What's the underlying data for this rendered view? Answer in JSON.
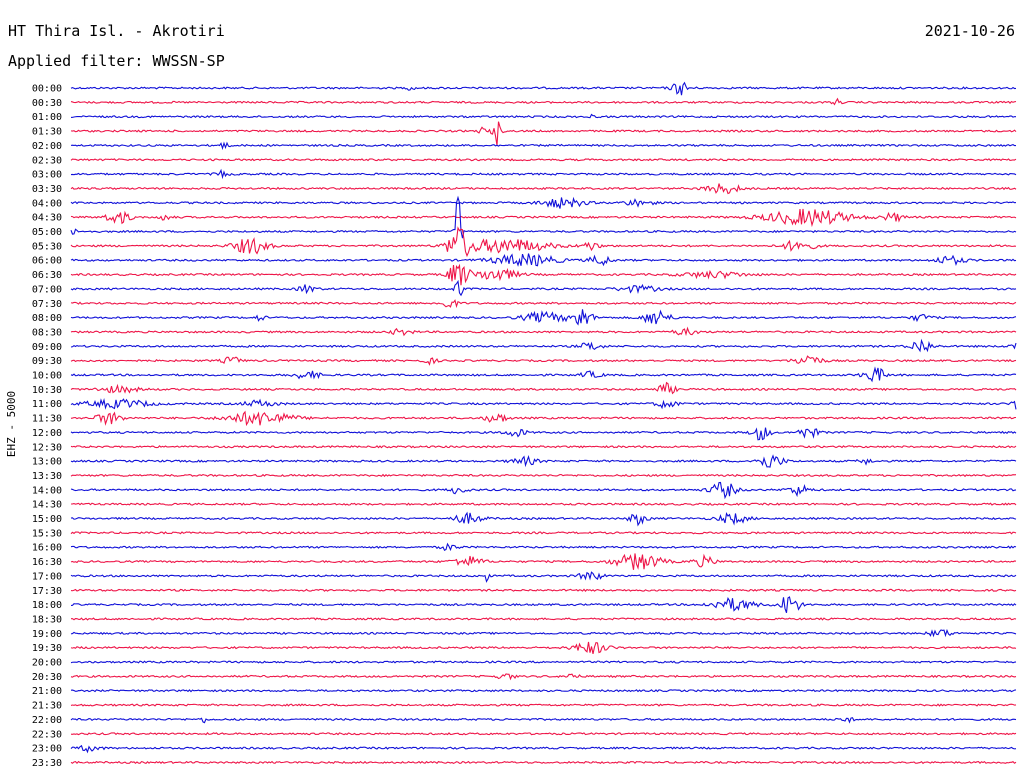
{
  "header": {
    "station": "HT Thira Isl. - Akrotiri",
    "date": "2021-10-26",
    "filter": "Applied filter: WWSSN-SP"
  },
  "chart_data": {
    "type": "line",
    "title": "HT Thira Isl. - Akrotiri",
    "ylabel": "EHZ - 5000",
    "trace_colors": [
      "#1010d8",
      "#ee1548"
    ],
    "rows": [
      {
        "label": "00:00",
        "events": [
          [
            0.36,
            3,
            3
          ],
          [
            0.645,
            7,
            8
          ]
        ]
      },
      {
        "label": "00:30",
        "events": [
          [
            0.81,
            3,
            4
          ]
        ]
      },
      {
        "label": "01:00",
        "events": [
          [
            0.55,
            2,
            3
          ]
        ]
      },
      {
        "label": "01:30",
        "events": [
          [
            0.45,
            14,
            4
          ],
          [
            0.435,
            4,
            3
          ]
        ]
      },
      {
        "label": "02:00",
        "events": [
          [
            0.16,
            3,
            6
          ]
        ]
      },
      {
        "label": "02:30",
        "events": []
      },
      {
        "label": "03:00",
        "events": [
          [
            0.16,
            3,
            6
          ]
        ]
      },
      {
        "label": "03:30",
        "events": [
          [
            0.69,
            5,
            16
          ]
        ]
      },
      {
        "label": "04:00",
        "events": [
          [
            0.52,
            5,
            20
          ],
          [
            0.6,
            3,
            14
          ]
        ]
      },
      {
        "label": "04:30",
        "events": [
          [
            0.05,
            6,
            12
          ],
          [
            0.1,
            3,
            6
          ],
          [
            0.78,
            8,
            40
          ],
          [
            0.87,
            4,
            10
          ]
        ]
      },
      {
        "label": "05:00",
        "events": [
          [
            0.0,
            4,
            5
          ],
          [
            0.41,
            45,
            3
          ]
        ]
      },
      {
        "label": "05:30",
        "events": [
          [
            0.41,
            18,
            10
          ],
          [
            0.46,
            7,
            40
          ],
          [
            0.19,
            8,
            16
          ],
          [
            0.77,
            6,
            14
          ],
          [
            0.55,
            4,
            8
          ]
        ]
      },
      {
        "label": "06:00",
        "events": [
          [
            0.48,
            6,
            30
          ],
          [
            0.56,
            5,
            10
          ],
          [
            0.93,
            4,
            14
          ]
        ]
      },
      {
        "label": "06:30",
        "events": [
          [
            0.41,
            12,
            10
          ],
          [
            0.45,
            6,
            20
          ],
          [
            0.68,
            3,
            30
          ]
        ]
      },
      {
        "label": "07:00",
        "events": [
          [
            0.41,
            16,
            3
          ],
          [
            0.25,
            4,
            8
          ],
          [
            0.6,
            3,
            20
          ]
        ]
      },
      {
        "label": "07:30",
        "events": [
          [
            0.4,
            5,
            8
          ]
        ]
      },
      {
        "label": "08:00",
        "events": [
          [
            0.54,
            10,
            10
          ],
          [
            0.62,
            8,
            12
          ],
          [
            0.5,
            5,
            20
          ],
          [
            0.2,
            3,
            5
          ],
          [
            0.9,
            3,
            10
          ]
        ]
      },
      {
        "label": "08:30",
        "events": [
          [
            0.65,
            3,
            12
          ],
          [
            0.35,
            3,
            10
          ]
        ]
      },
      {
        "label": "09:00",
        "events": [
          [
            0.9,
            7,
            10
          ],
          [
            0.55,
            4,
            10
          ],
          [
            1.0,
            4,
            6
          ]
        ]
      },
      {
        "label": "09:30",
        "events": [
          [
            0.78,
            6,
            12
          ],
          [
            0.17,
            4,
            8
          ],
          [
            0.38,
            3,
            6
          ]
        ]
      },
      {
        "label": "10:00",
        "events": [
          [
            0.85,
            8,
            10
          ],
          [
            0.25,
            4,
            12
          ],
          [
            0.55,
            3,
            10
          ]
        ]
      },
      {
        "label": "10:30",
        "events": [
          [
            0.63,
            6,
            8
          ],
          [
            0.05,
            3,
            20
          ]
        ]
      },
      {
        "label": "11:00",
        "events": [
          [
            0.63,
            4,
            10
          ],
          [
            0.05,
            4,
            30
          ],
          [
            0.2,
            3,
            16
          ],
          [
            1.0,
            5,
            4
          ]
        ]
      },
      {
        "label": "11:30",
        "events": [
          [
            0.2,
            7,
            30
          ],
          [
            0.04,
            6,
            12
          ],
          [
            0.45,
            5,
            10
          ]
        ]
      },
      {
        "label": "12:00",
        "events": [
          [
            0.73,
            8,
            8
          ],
          [
            0.78,
            5,
            10
          ],
          [
            0.47,
            4,
            10
          ]
        ]
      },
      {
        "label": "12:30",
        "events": []
      },
      {
        "label": "13:00",
        "events": [
          [
            0.74,
            7,
            12
          ],
          [
            0.48,
            4,
            12
          ],
          [
            0.84,
            3,
            6
          ]
        ]
      },
      {
        "label": "13:30",
        "events": []
      },
      {
        "label": "14:00",
        "events": [
          [
            0.69,
            8,
            12
          ],
          [
            0.77,
            5,
            10
          ],
          [
            0.41,
            4,
            8
          ]
        ]
      },
      {
        "label": "14:30",
        "events": []
      },
      {
        "label": "15:00",
        "events": [
          [
            0.6,
            6,
            8
          ],
          [
            0.7,
            5,
            14
          ],
          [
            0.42,
            5,
            14
          ]
        ]
      },
      {
        "label": "15:30",
        "events": []
      },
      {
        "label": "16:00",
        "events": [
          [
            0.4,
            3,
            8
          ]
        ]
      },
      {
        "label": "16:30",
        "events": [
          [
            0.6,
            8,
            22
          ],
          [
            0.67,
            5,
            10
          ],
          [
            0.42,
            5,
            14
          ]
        ]
      },
      {
        "label": "17:00",
        "events": [
          [
            0.55,
            5,
            10
          ],
          [
            0.44,
            7,
            2
          ]
        ]
      },
      {
        "label": "17:30",
        "events": []
      },
      {
        "label": "18:00",
        "events": [
          [
            0.76,
            10,
            10
          ],
          [
            0.7,
            6,
            20
          ]
        ]
      },
      {
        "label": "18:30",
        "events": []
      },
      {
        "label": "19:00",
        "events": [
          [
            0.92,
            4,
            10
          ]
        ]
      },
      {
        "label": "19:30",
        "events": [
          [
            0.55,
            6,
            16
          ]
        ]
      },
      {
        "label": "20:00",
        "events": []
      },
      {
        "label": "20:30",
        "events": [
          [
            0.46,
            3,
            8
          ],
          [
            0.53,
            3,
            6
          ]
        ]
      },
      {
        "label": "21:00",
        "events": []
      },
      {
        "label": "21:30",
        "events": []
      },
      {
        "label": "22:00",
        "events": [
          [
            0.82,
            3,
            6
          ],
          [
            0.14,
            3,
            3
          ]
        ]
      },
      {
        "label": "22:30",
        "events": []
      },
      {
        "label": "23:00",
        "events": [
          [
            0.02,
            3,
            10
          ]
        ]
      },
      {
        "label": "23:30",
        "events": []
      }
    ]
  }
}
